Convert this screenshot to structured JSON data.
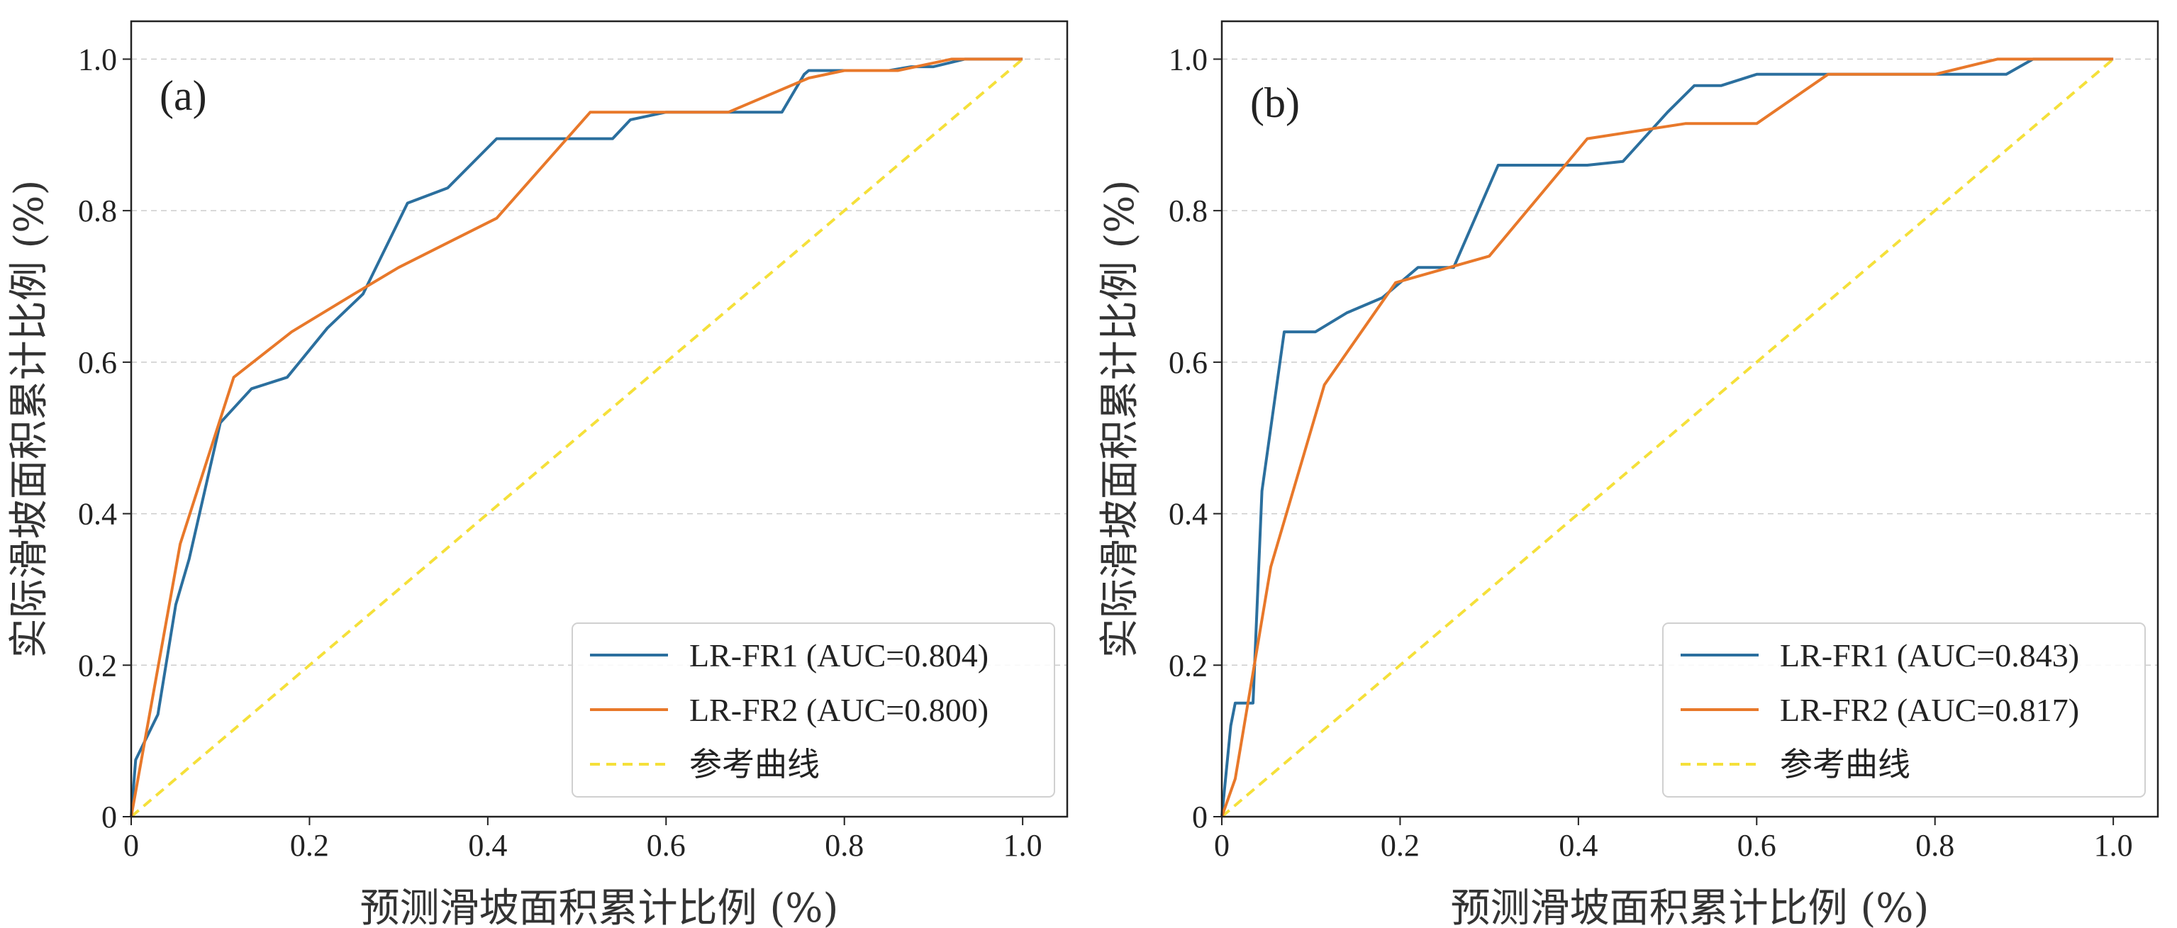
{
  "colors": {
    "series1": "#2b6f9e",
    "series2": "#e8782a",
    "reference": "#f5e03a",
    "grid": "#cccccc",
    "axes": "#222222"
  },
  "chart_data": [
    {
      "type": "line",
      "panel_label": "(a)",
      "xlabel": "预测滑坡面积累计比例 (%)",
      "ylabel": "实际滑坡面积累计比例 (%)",
      "xlim": [
        0,
        1.05
      ],
      "ylim": [
        0,
        1.05
      ],
      "xticks": [
        "0",
        "0.2",
        "0.4",
        "0.6",
        "0.8",
        "1.0"
      ],
      "yticks": [
        "0",
        "0.2",
        "0.4",
        "0.6",
        "0.8",
        "1.0"
      ],
      "grid": "horizontal-dashed",
      "legend_position": "lower-right",
      "series": [
        {
          "name": "LR-FR1 (AUC=0.804)",
          "style": "solid",
          "x": [
            0,
            0.005,
            0.03,
            0.05,
            0.065,
            0.1,
            0.135,
            0.175,
            0.22,
            0.26,
            0.31,
            0.355,
            0.41,
            0.53,
            0.54,
            0.56,
            0.6,
            0.73,
            0.755,
            0.76,
            0.85,
            0.875,
            0.9,
            0.935,
            1.0
          ],
          "y": [
            0,
            0.075,
            0.135,
            0.28,
            0.34,
            0.52,
            0.565,
            0.58,
            0.645,
            0.69,
            0.81,
            0.83,
            0.895,
            0.895,
            0.895,
            0.92,
            0.93,
            0.93,
            0.98,
            0.985,
            0.985,
            0.99,
            0.99,
            1.0,
            1.0
          ]
        },
        {
          "name": "LR-FR2 (AUC=0.800)",
          "style": "solid",
          "x": [
            0,
            0.055,
            0.115,
            0.18,
            0.25,
            0.3,
            0.41,
            0.515,
            0.6,
            0.67,
            0.76,
            0.8,
            0.86,
            0.92,
            1.0
          ],
          "y": [
            0,
            0.36,
            0.58,
            0.64,
            0.69,
            0.725,
            0.79,
            0.93,
            0.93,
            0.93,
            0.975,
            0.985,
            0.985,
            1.0,
            1.0
          ]
        },
        {
          "name": "参考曲线",
          "style": "dashed",
          "x": [
            0,
            1.0
          ],
          "y": [
            0,
            1.0
          ]
        }
      ]
    },
    {
      "type": "line",
      "panel_label": "(b)",
      "xlabel": "预测滑坡面积累计比例 (%)",
      "ylabel": "实际滑坡面积累计比例 (%)",
      "xlim": [
        0,
        1.05
      ],
      "ylim": [
        0,
        1.05
      ],
      "xticks": [
        "0",
        "0.2",
        "0.4",
        "0.6",
        "0.8",
        "1.0"
      ],
      "yticks": [
        "0",
        "0.2",
        "0.4",
        "0.6",
        "0.8",
        "1.0"
      ],
      "grid": "horizontal-dashed",
      "legend_position": "lower-right",
      "series": [
        {
          "name": "LR-FR1 (AUC=0.843)",
          "style": "solid",
          "x": [
            0,
            0.01,
            0.015,
            0.035,
            0.045,
            0.07,
            0.105,
            0.14,
            0.18,
            0.22,
            0.26,
            0.31,
            0.41,
            0.45,
            0.5,
            0.53,
            0.56,
            0.6,
            0.7,
            0.88,
            0.91,
            1.0
          ],
          "y": [
            0,
            0.12,
            0.15,
            0.15,
            0.43,
            0.64,
            0.64,
            0.665,
            0.685,
            0.725,
            0.725,
            0.86,
            0.86,
            0.865,
            0.93,
            0.965,
            0.965,
            0.98,
            0.98,
            0.98,
            1.0,
            1.0
          ]
        },
        {
          "name": "LR-FR2 (AUC=0.817)",
          "style": "solid",
          "x": [
            0,
            0.015,
            0.055,
            0.115,
            0.195,
            0.3,
            0.41,
            0.52,
            0.6,
            0.68,
            0.8,
            0.87,
            1.0
          ],
          "y": [
            0,
            0.05,
            0.33,
            0.57,
            0.705,
            0.74,
            0.895,
            0.915,
            0.915,
            0.98,
            0.98,
            1.0,
            1.0
          ]
        },
        {
          "name": "参考曲线",
          "style": "dashed",
          "x": [
            0,
            1.0
          ],
          "y": [
            0,
            1.0
          ]
        }
      ]
    }
  ]
}
